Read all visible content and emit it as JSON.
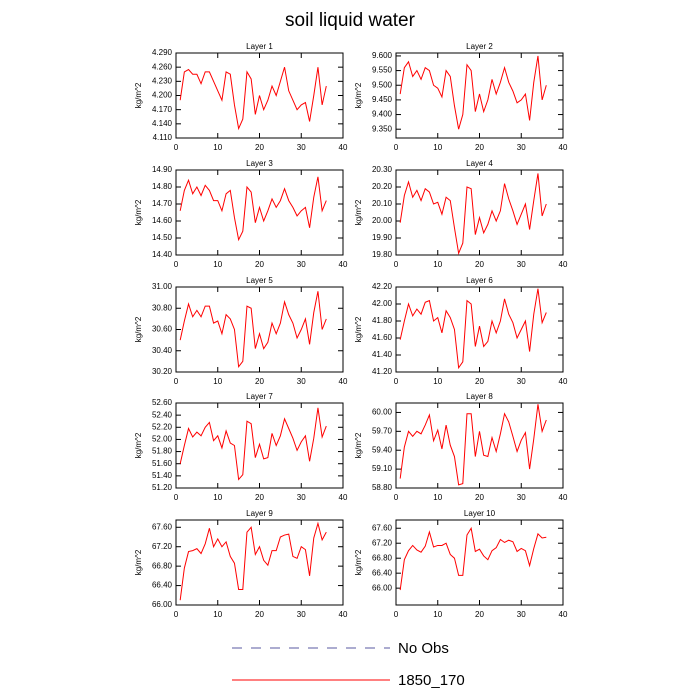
{
  "title": "soil liquid water",
  "legend": [
    {
      "name": "No Obs",
      "color": "#5a5aa0",
      "dash": true
    },
    {
      "name": "1850_170",
      "color": "#ff0000",
      "dash": false
    }
  ],
  "chart_data": [
    {
      "type": "line",
      "title": "Layer 1",
      "ylabel": "kg/m^2",
      "x": [
        1,
        2,
        3,
        4,
        5,
        6,
        7,
        8,
        9,
        10,
        11,
        12,
        13,
        14,
        15,
        16,
        17,
        18,
        19,
        20,
        21,
        22,
        23,
        24,
        25,
        26,
        27,
        28,
        29,
        30,
        31,
        32,
        33,
        34,
        35,
        36
      ],
      "series": [
        {
          "color": "#ff0000",
          "values": [
            4.19,
            4.25,
            4.255,
            4.245,
            4.245,
            4.225,
            4.25,
            4.25,
            4.23,
            4.21,
            4.19,
            4.25,
            4.245,
            4.18,
            4.13,
            4.15,
            4.25,
            4.235,
            4.16,
            4.2,
            4.17,
            4.19,
            4.22,
            4.2,
            4.23,
            4.26,
            4.21,
            4.19,
            4.17,
            4.18,
            4.185,
            4.145,
            4.2,
            4.26,
            4.18,
            4.22
          ]
        }
      ],
      "xlim": [
        0,
        40
      ],
      "xticks": [
        0,
        10,
        20,
        30,
        40
      ],
      "ylim": [
        4.11,
        4.29
      ],
      "yticks": [
        {
          "value": 4.11,
          "label": "4.110"
        },
        {
          "value": 4.14,
          "label": "4.140"
        },
        {
          "value": 4.17,
          "label": "4.170"
        },
        {
          "value": 4.2,
          "label": "4.200"
        },
        {
          "value": 4.23,
          "label": "4.230"
        },
        {
          "value": 4.26,
          "label": "4.260"
        },
        {
          "value": 4.29,
          "label": "4.290"
        }
      ]
    },
    {
      "type": "line",
      "title": "Layer 2",
      "ylabel": "kg/m^2",
      "x": [
        1,
        2,
        3,
        4,
        5,
        6,
        7,
        8,
        9,
        10,
        11,
        12,
        13,
        14,
        15,
        16,
        17,
        18,
        19,
        20,
        21,
        22,
        23,
        24,
        25,
        26,
        27,
        28,
        29,
        30,
        31,
        32,
        33,
        34,
        35,
        36
      ],
      "series": [
        {
          "color": "#ff0000",
          "values": [
            9.47,
            9.56,
            9.58,
            9.53,
            9.55,
            9.52,
            9.56,
            9.55,
            9.5,
            9.49,
            9.46,
            9.55,
            9.53,
            9.43,
            9.35,
            9.4,
            9.57,
            9.55,
            9.41,
            9.47,
            9.41,
            9.45,
            9.52,
            9.47,
            9.51,
            9.56,
            9.51,
            9.48,
            9.44,
            9.45,
            9.47,
            9.38,
            9.51,
            9.6,
            9.45,
            9.5
          ]
        }
      ],
      "xlim": [
        0,
        40
      ],
      "xticks": [
        0,
        10,
        20,
        30,
        40
      ],
      "ylim": [
        9.32,
        9.61
      ],
      "yticks": [
        {
          "value": 9.35,
          "label": "9.350"
        },
        {
          "value": 9.4,
          "label": "9.400"
        },
        {
          "value": 9.45,
          "label": "9.450"
        },
        {
          "value": 9.5,
          "label": "9.500"
        },
        {
          "value": 9.55,
          "label": "9.550"
        },
        {
          "value": 9.6,
          "label": "9.600"
        }
      ]
    },
    {
      "type": "line",
      "title": "Layer 3",
      "ylabel": "kg/m^2",
      "x": [
        1,
        2,
        3,
        4,
        5,
        6,
        7,
        8,
        9,
        10,
        11,
        12,
        13,
        14,
        15,
        16,
        17,
        18,
        19,
        20,
        21,
        22,
        23,
        24,
        25,
        26,
        27,
        28,
        29,
        30,
        31,
        32,
        33,
        34,
        35,
        36
      ],
      "series": [
        {
          "color": "#ff0000",
          "values": [
            14.66,
            14.78,
            14.84,
            14.76,
            14.8,
            14.75,
            14.81,
            14.78,
            14.72,
            14.72,
            14.66,
            14.76,
            14.78,
            14.62,
            14.49,
            14.54,
            14.8,
            14.77,
            14.59,
            14.68,
            14.6,
            14.66,
            14.73,
            14.68,
            14.72,
            14.79,
            14.72,
            14.68,
            14.63,
            14.66,
            14.68,
            14.56,
            14.74,
            14.86,
            14.66,
            14.72
          ]
        }
      ],
      "xlim": [
        0,
        40
      ],
      "xticks": [
        0,
        10,
        20,
        30,
        40
      ],
      "ylim": [
        14.4,
        14.9
      ],
      "yticks": [
        {
          "value": 14.4,
          "label": "14.40"
        },
        {
          "value": 14.5,
          "label": "14.50"
        },
        {
          "value": 14.6,
          "label": "14.60"
        },
        {
          "value": 14.7,
          "label": "14.70"
        },
        {
          "value": 14.8,
          "label": "14.80"
        },
        {
          "value": 14.9,
          "label": "14.90"
        }
      ]
    },
    {
      "type": "line",
      "title": "Layer 4",
      "ylabel": "kg/m^2",
      "x": [
        1,
        2,
        3,
        4,
        5,
        6,
        7,
        8,
        9,
        10,
        11,
        12,
        13,
        14,
        15,
        16,
        17,
        18,
        19,
        20,
        21,
        22,
        23,
        24,
        25,
        26,
        27,
        28,
        29,
        30,
        31,
        32,
        33,
        34,
        35,
        36
      ],
      "series": [
        {
          "color": "#ff0000",
          "values": [
            19.99,
            20.15,
            20.23,
            20.14,
            20.18,
            20.12,
            20.19,
            20.17,
            20.1,
            20.11,
            20.04,
            20.14,
            20.12,
            19.96,
            19.81,
            19.87,
            20.2,
            20.19,
            19.92,
            20.02,
            19.93,
            19.98,
            20.06,
            20.0,
            20.06,
            20.22,
            20.13,
            20.06,
            19.98,
            20.04,
            20.1,
            19.95,
            20.12,
            20.28,
            20.03,
            20.1
          ]
        }
      ],
      "xlim": [
        0,
        40
      ],
      "xticks": [
        0,
        10,
        20,
        30,
        40
      ],
      "ylim": [
        19.8,
        20.3
      ],
      "yticks": [
        {
          "value": 19.8,
          "label": "19.80"
        },
        {
          "value": 19.9,
          "label": "19.90"
        },
        {
          "value": 20.0,
          "label": "20.00"
        },
        {
          "value": 20.1,
          "label": "20.10"
        },
        {
          "value": 20.2,
          "label": "20.20"
        },
        {
          "value": 20.3,
          "label": "20.30"
        }
      ]
    },
    {
      "type": "line",
      "title": "Layer 5",
      "ylabel": "kg/m^2",
      "x": [
        1,
        2,
        3,
        4,
        5,
        6,
        7,
        8,
        9,
        10,
        11,
        12,
        13,
        14,
        15,
        16,
        17,
        18,
        19,
        20,
        21,
        22,
        23,
        24,
        25,
        26,
        27,
        28,
        29,
        30,
        31,
        32,
        33,
        34,
        35,
        36
      ],
      "series": [
        {
          "color": "#ff0000",
          "values": [
            30.5,
            30.68,
            30.84,
            30.72,
            30.78,
            30.72,
            30.82,
            30.82,
            30.66,
            30.68,
            30.56,
            30.74,
            30.7,
            30.6,
            30.25,
            30.3,
            30.82,
            30.8,
            30.42,
            30.56,
            30.42,
            30.48,
            30.66,
            30.56,
            30.66,
            30.86,
            30.74,
            30.66,
            30.52,
            30.6,
            30.7,
            30.46,
            30.76,
            30.96,
            30.6,
            30.7
          ]
        }
      ],
      "xlim": [
        0,
        40
      ],
      "xticks": [
        0,
        10,
        20,
        30,
        40
      ],
      "ylim": [
        30.2,
        31.0
      ],
      "yticks": [
        {
          "value": 30.2,
          "label": "30.20"
        },
        {
          "value": 30.4,
          "label": "30.40"
        },
        {
          "value": 30.6,
          "label": "30.60"
        },
        {
          "value": 30.8,
          "label": "30.80"
        },
        {
          "value": 31.0,
          "label": "31.00"
        }
      ]
    },
    {
      "type": "line",
      "title": "Layer 6",
      "ylabel": "kg/m^2",
      "x": [
        1,
        2,
        3,
        4,
        5,
        6,
        7,
        8,
        9,
        10,
        11,
        12,
        13,
        14,
        15,
        16,
        17,
        18,
        19,
        20,
        21,
        22,
        23,
        24,
        25,
        26,
        27,
        28,
        29,
        30,
        31,
        32,
        33,
        34,
        35,
        36
      ],
      "series": [
        {
          "color": "#ff0000",
          "values": [
            41.58,
            41.8,
            42.0,
            41.86,
            41.94,
            41.88,
            42.02,
            42.04,
            41.8,
            41.84,
            41.66,
            41.92,
            41.84,
            41.7,
            41.25,
            41.32,
            42.04,
            42.0,
            41.5,
            41.74,
            41.5,
            41.56,
            41.8,
            41.66,
            41.8,
            42.06,
            41.88,
            41.78,
            41.6,
            41.7,
            41.8,
            41.44,
            41.88,
            42.18,
            41.78,
            41.9
          ]
        }
      ],
      "xlim": [
        0,
        40
      ],
      "xticks": [
        0,
        10,
        20,
        30,
        40
      ],
      "ylim": [
        41.2,
        42.2
      ],
      "yticks": [
        {
          "value": 41.2,
          "label": "41.20"
        },
        {
          "value": 41.4,
          "label": "41.40"
        },
        {
          "value": 41.6,
          "label": "41.60"
        },
        {
          "value": 41.8,
          "label": "41.80"
        },
        {
          "value": 42.0,
          "label": "42.00"
        },
        {
          "value": 42.2,
          "label": "42.20"
        }
      ]
    },
    {
      "type": "line",
      "title": "Layer 7",
      "ylabel": "kg/m^2",
      "x": [
        1,
        2,
        3,
        4,
        5,
        6,
        7,
        8,
        9,
        10,
        11,
        12,
        13,
        14,
        15,
        16,
        17,
        18,
        19,
        20,
        21,
        22,
        23,
        24,
        25,
        26,
        27,
        28,
        29,
        30,
        31,
        32,
        33,
        34,
        35,
        36
      ],
      "series": [
        {
          "color": "#ff0000",
          "values": [
            51.6,
            51.9,
            52.18,
            52.04,
            52.12,
            52.06,
            52.2,
            52.28,
            51.98,
            52.06,
            51.86,
            52.14,
            51.94,
            51.9,
            51.34,
            51.42,
            52.3,
            52.26,
            51.7,
            51.92,
            51.68,
            51.7,
            52.1,
            51.9,
            52.06,
            52.34,
            52.18,
            52.02,
            51.82,
            51.96,
            52.06,
            51.64,
            52.02,
            52.52,
            52.04,
            52.22
          ]
        }
      ],
      "xlim": [
        0,
        40
      ],
      "xticks": [
        0,
        10,
        20,
        30,
        40
      ],
      "ylim": [
        51.2,
        52.6
      ],
      "yticks": [
        {
          "value": 51.2,
          "label": "51.20"
        },
        {
          "value": 51.4,
          "label": "51.40"
        },
        {
          "value": 51.6,
          "label": "51.60"
        },
        {
          "value": 51.8,
          "label": "51.80"
        },
        {
          "value": 52.0,
          "label": "52.00"
        },
        {
          "value": 52.2,
          "label": "52.20"
        },
        {
          "value": 52.4,
          "label": "52.40"
        },
        {
          "value": 52.6,
          "label": "52.60"
        }
      ]
    },
    {
      "type": "line",
      "title": "Layer 8",
      "ylabel": "kg/m^2",
      "x": [
        1,
        2,
        3,
        4,
        5,
        6,
        7,
        8,
        9,
        10,
        11,
        12,
        13,
        14,
        15,
        16,
        17,
        18,
        19,
        20,
        21,
        22,
        23,
        24,
        25,
        26,
        27,
        28,
        29,
        30,
        31,
        32,
        33,
        34,
        35,
        36
      ],
      "series": [
        {
          "color": "#ff0000",
          "values": [
            58.95,
            59.45,
            59.7,
            59.62,
            59.7,
            59.66,
            59.8,
            59.96,
            59.55,
            59.72,
            59.42,
            59.8,
            59.48,
            59.3,
            58.85,
            58.87,
            59.98,
            59.98,
            59.3,
            59.7,
            59.32,
            59.3,
            59.6,
            59.38,
            59.66,
            59.98,
            59.85,
            59.62,
            59.38,
            59.56,
            59.68,
            59.1,
            59.58,
            60.13,
            59.7,
            59.88
          ]
        }
      ],
      "xlim": [
        0,
        40
      ],
      "xticks": [
        0,
        10,
        20,
        30,
        40
      ],
      "ylim": [
        58.8,
        60.15
      ],
      "yticks": [
        {
          "value": 58.8,
          "label": "58.80"
        },
        {
          "value": 59.1,
          "label": "59.10"
        },
        {
          "value": 59.4,
          "label": "59.40"
        },
        {
          "value": 59.7,
          "label": "59.70"
        },
        {
          "value": 60.0,
          "label": "60.00"
        }
      ]
    },
    {
      "type": "line",
      "title": "Layer 9",
      "ylabel": "kg/m^2",
      "x": [
        1,
        2,
        3,
        4,
        5,
        6,
        7,
        8,
        9,
        10,
        11,
        12,
        13,
        14,
        15,
        16,
        17,
        18,
        19,
        20,
        21,
        22,
        23,
        24,
        25,
        26,
        27,
        28,
        29,
        30,
        31,
        32,
        33,
        34,
        35,
        36
      ],
      "series": [
        {
          "color": "#ff0000",
          "values": [
            66.1,
            66.76,
            67.1,
            67.12,
            67.16,
            67.06,
            67.26,
            67.58,
            67.2,
            67.36,
            67.2,
            67.3,
            67.0,
            66.86,
            66.32,
            66.32,
            67.5,
            67.6,
            67.04,
            67.2,
            66.92,
            66.82,
            67.12,
            67.12,
            67.4,
            67.44,
            67.46,
            67.0,
            66.96,
            67.2,
            67.14,
            66.6,
            67.38,
            67.68,
            67.34,
            67.5
          ]
        }
      ],
      "xlim": [
        0,
        40
      ],
      "xticks": [
        0,
        10,
        20,
        30,
        40
      ],
      "ylim": [
        66.0,
        67.75
      ],
      "yticks": [
        {
          "value": 66.0,
          "label": "66.00"
        },
        {
          "value": 66.4,
          "label": "66.40"
        },
        {
          "value": 66.8,
          "label": "66.80"
        },
        {
          "value": 67.2,
          "label": "67.20"
        },
        {
          "value": 67.6,
          "label": "67.60"
        }
      ]
    },
    {
      "type": "line",
      "title": "Layer 10",
      "ylabel": "kg/m^2",
      "x": [
        1,
        2,
        3,
        4,
        5,
        6,
        7,
        8,
        9,
        10,
        11,
        12,
        13,
        14,
        15,
        16,
        17,
        18,
        19,
        20,
        21,
        22,
        23,
        24,
        25,
        26,
        27,
        28,
        29,
        30,
        31,
        32,
        33,
        34,
        35,
        36
      ],
      "series": [
        {
          "color": "#ff0000",
          "values": [
            65.95,
            66.76,
            67.0,
            67.14,
            67.02,
            66.96,
            67.12,
            67.5,
            67.1,
            67.14,
            67.14,
            67.2,
            66.9,
            66.8,
            66.34,
            66.34,
            67.42,
            67.6,
            66.98,
            67.04,
            66.86,
            66.76,
            67.0,
            67.08,
            67.3,
            67.22,
            67.28,
            67.24,
            66.98,
            67.06,
            67.0,
            66.6,
            67.06,
            67.45,
            67.34,
            67.36
          ]
        }
      ],
      "xlim": [
        0,
        40
      ],
      "xticks": [
        0,
        10,
        20,
        30,
        40
      ],
      "ylim": [
        65.55,
        67.82
      ],
      "yticks": [
        {
          "value": 66.0,
          "label": "66.00"
        },
        {
          "value": 66.4,
          "label": "66.40"
        },
        {
          "value": 66.8,
          "label": "66.80"
        },
        {
          "value": 67.2,
          "label": "67.20"
        },
        {
          "value": 67.6,
          "label": "67.60"
        }
      ]
    }
  ]
}
